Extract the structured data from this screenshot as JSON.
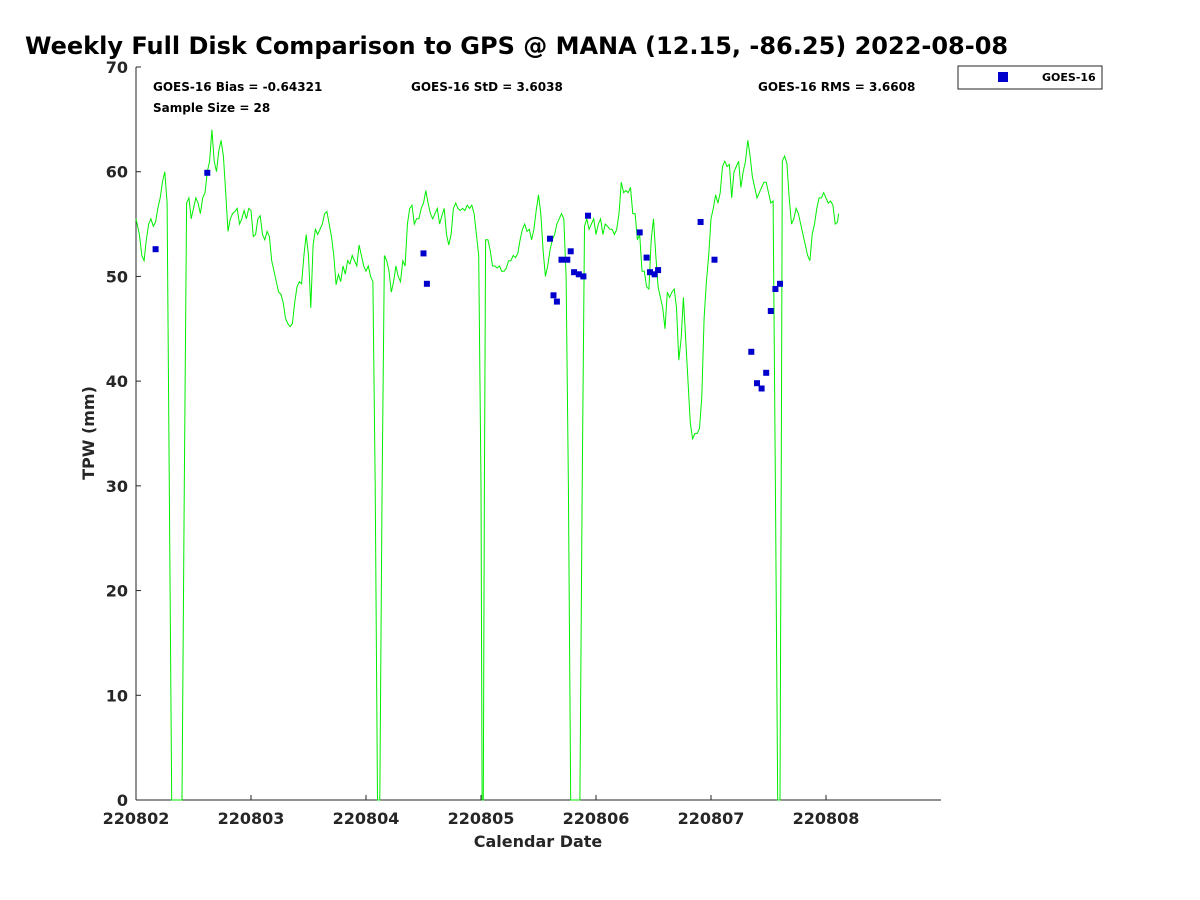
{
  "chart_data": {
    "type": "line",
    "title": "Weekly Full Disk Comparison to GPS @ MANA (12.15, -86.25) 2022-08-08",
    "xlabel": "Calendar Date",
    "ylabel": "TPW (mm)",
    "xlim": [
      0,
      7
    ],
    "ylim": [
      0,
      70
    ],
    "x_ticks": [
      0,
      1,
      2,
      3,
      4,
      5,
      6
    ],
    "x_tick_labels": [
      "220802",
      "220803",
      "220804",
      "220805",
      "220806",
      "220807",
      "220808"
    ],
    "y_ticks": [
      0,
      10,
      20,
      30,
      40,
      50,
      60,
      70
    ],
    "y_tick_labels": [
      "0",
      "10",
      "20",
      "30",
      "40",
      "50",
      "60",
      "70"
    ],
    "grid": false,
    "legend_position": "outside-top-right",
    "stats": {
      "bias": "GOES-16 Bias = -0.64321",
      "std": "GOES-16 StD = 3.6038",
      "rms": "GOES-16 RMS = 3.6608",
      "sample_size": "Sample Size = 28"
    },
    "line_color": "#00ee00",
    "marker_color": "#0000cc",
    "gps_line": [
      [
        0.0,
        55.5
      ],
      [
        0.03,
        54.0
      ],
      [
        0.05,
        52.0
      ],
      [
        0.07,
        51.5
      ],
      [
        0.09,
        53.5
      ],
      [
        0.11,
        55.0
      ],
      [
        0.13,
        55.5
      ],
      [
        0.15,
        54.8
      ],
      [
        0.17,
        55.2
      ],
      [
        0.19,
        56.5
      ],
      [
        0.21,
        57.5
      ],
      [
        0.23,
        59.0
      ],
      [
        0.25,
        60.0
      ],
      [
        0.27,
        57.0
      ],
      [
        0.29,
        30.0
      ],
      [
        0.31,
        0.0
      ],
      [
        0.4,
        0.0
      ],
      [
        0.42,
        30.0
      ],
      [
        0.44,
        57.0
      ],
      [
        0.46,
        57.5
      ],
      [
        0.48,
        55.5
      ],
      [
        0.5,
        56.5
      ],
      [
        0.52,
        57.5
      ],
      [
        0.54,
        57.0
      ],
      [
        0.56,
        56.0
      ],
      [
        0.58,
        57.5
      ],
      [
        0.6,
        58.0
      ],
      [
        0.62,
        60.0
      ],
      [
        0.64,
        61.0
      ],
      [
        0.66,
        64.0
      ],
      [
        0.68,
        61.0
      ],
      [
        0.7,
        60.0
      ],
      [
        0.72,
        62.0
      ],
      [
        0.74,
        63.0
      ],
      [
        0.76,
        61.5
      ],
      [
        0.78,
        58.0
      ],
      [
        0.8,
        54.3
      ],
      [
        0.82,
        55.5
      ],
      [
        0.84,
        56.0
      ],
      [
        0.86,
        56.2
      ],
      [
        0.88,
        56.5
      ],
      [
        0.9,
        55.0
      ],
      [
        0.92,
        55.5
      ],
      [
        0.94,
        56.3
      ],
      [
        0.96,
        55.5
      ],
      [
        0.98,
        56.5
      ],
      [
        1.0,
        56.3
      ],
      [
        1.02,
        53.8
      ],
      [
        1.04,
        54.0
      ],
      [
        1.06,
        55.5
      ],
      [
        1.08,
        55.8
      ],
      [
        1.1,
        54.0
      ],
      [
        1.12,
        53.5
      ],
      [
        1.14,
        54.3
      ],
      [
        1.16,
        53.8
      ],
      [
        1.18,
        51.5
      ],
      [
        1.2,
        50.5
      ],
      [
        1.22,
        49.5
      ],
      [
        1.24,
        48.5
      ],
      [
        1.26,
        48.3
      ],
      [
        1.28,
        47.5
      ],
      [
        1.3,
        46.0
      ],
      [
        1.32,
        45.5
      ],
      [
        1.34,
        45.2
      ],
      [
        1.36,
        45.5
      ],
      [
        1.38,
        47.5
      ],
      [
        1.4,
        49.0
      ],
      [
        1.42,
        49.5
      ],
      [
        1.44,
        49.3
      ],
      [
        1.46,
        52.0
      ],
      [
        1.48,
        54.0
      ],
      [
        1.5,
        52.0
      ],
      [
        1.52,
        47.0
      ],
      [
        1.54,
        53.0
      ],
      [
        1.56,
        54.5
      ],
      [
        1.58,
        54.0
      ],
      [
        1.6,
        54.5
      ],
      [
        1.62,
        55.0
      ],
      [
        1.64,
        56.0
      ],
      [
        1.66,
        56.2
      ],
      [
        1.68,
        55.0
      ],
      [
        1.7,
        53.8
      ],
      [
        1.72,
        52.0
      ],
      [
        1.74,
        49.2
      ],
      [
        1.76,
        50.2
      ],
      [
        1.78,
        49.5
      ],
      [
        1.8,
        51.0
      ],
      [
        1.82,
        50.2
      ],
      [
        1.84,
        51.5
      ],
      [
        1.86,
        51.2
      ],
      [
        1.88,
        52.0
      ],
      [
        1.9,
        51.5
      ],
      [
        1.92,
        51.0
      ],
      [
        1.94,
        53.0
      ],
      [
        1.96,
        52.0
      ],
      [
        1.98,
        51.0
      ],
      [
        2.0,
        50.5
      ],
      [
        2.02,
        51.0
      ],
      [
        2.04,
        50.0
      ],
      [
        2.06,
        49.5
      ],
      [
        2.08,
        30.0
      ],
      [
        2.1,
        0.0
      ],
      [
        2.12,
        0.0
      ],
      [
        2.14,
        30.0
      ],
      [
        2.16,
        52.0
      ],
      [
        2.18,
        51.5
      ],
      [
        2.2,
        50.5
      ],
      [
        2.22,
        48.5
      ],
      [
        2.24,
        49.5
      ],
      [
        2.26,
        51.0
      ],
      [
        2.28,
        50.0
      ],
      [
        2.3,
        49.5
      ],
      [
        2.32,
        51.5
      ],
      [
        2.34,
        51.0
      ],
      [
        2.36,
        55.0
      ],
      [
        2.38,
        56.5
      ],
      [
        2.4,
        56.8
      ],
      [
        2.42,
        55.0
      ],
      [
        2.44,
        55.5
      ],
      [
        2.46,
        55.5
      ],
      [
        2.48,
        56.5
      ],
      [
        2.5,
        57.0
      ],
      [
        2.52,
        58.2
      ],
      [
        2.54,
        57.0
      ],
      [
        2.56,
        56.0
      ],
      [
        2.58,
        55.5
      ],
      [
        2.6,
        56.0
      ],
      [
        2.62,
        56.5
      ],
      [
        2.64,
        55.0
      ],
      [
        2.66,
        55.8
      ],
      [
        2.68,
        56.5
      ],
      [
        2.7,
        54.0
      ],
      [
        2.72,
        53.0
      ],
      [
        2.74,
        54.0
      ],
      [
        2.76,
        56.5
      ],
      [
        2.78,
        57.0
      ],
      [
        2.8,
        56.5
      ],
      [
        2.82,
        56.3
      ],
      [
        2.84,
        56.5
      ],
      [
        2.86,
        56.3
      ],
      [
        2.88,
        56.8
      ],
      [
        2.9,
        56.5
      ],
      [
        2.92,
        56.8
      ],
      [
        2.94,
        56.0
      ],
      [
        2.96,
        54.0
      ],
      [
        2.98,
        52.0
      ],
      [
        3.0,
        30.0
      ],
      [
        3.01,
        0.0
      ],
      [
        3.02,
        0.0
      ],
      [
        3.03,
        30.0
      ],
      [
        3.04,
        53.5
      ],
      [
        3.06,
        53.5
      ],
      [
        3.08,
        52.5
      ],
      [
        3.1,
        51.0
      ],
      [
        3.12,
        51.0
      ],
      [
        3.14,
        50.8
      ],
      [
        3.16,
        51.0
      ],
      [
        3.18,
        50.5
      ],
      [
        3.2,
        50.5
      ],
      [
        3.22,
        50.8
      ],
      [
        3.24,
        51.5
      ],
      [
        3.26,
        51.5
      ],
      [
        3.28,
        52.0
      ],
      [
        3.3,
        51.8
      ],
      [
        3.32,
        52.2
      ],
      [
        3.34,
        53.5
      ],
      [
        3.36,
        54.5
      ],
      [
        3.38,
        55.0
      ],
      [
        3.4,
        54.3
      ],
      [
        3.42,
        54.5
      ],
      [
        3.44,
        53.5
      ],
      [
        3.46,
        54.5
      ],
      [
        3.48,
        56.3
      ],
      [
        3.5,
        57.8
      ],
      [
        3.52,
        56.0
      ],
      [
        3.54,
        52.5
      ],
      [
        3.56,
        50.0
      ],
      [
        3.58,
        51.0
      ],
      [
        3.6,
        52.5
      ],
      [
        3.62,
        53.5
      ],
      [
        3.64,
        54.0
      ],
      [
        3.66,
        55.0
      ],
      [
        3.68,
        55.5
      ],
      [
        3.7,
        56.0
      ],
      [
        3.72,
        55.5
      ],
      [
        3.74,
        50.0
      ],
      [
        3.76,
        30.0
      ],
      [
        3.78,
        0.0
      ],
      [
        3.86,
        0.0
      ],
      [
        3.88,
        30.0
      ],
      [
        3.9,
        54.8
      ],
      [
        3.92,
        55.5
      ],
      [
        3.94,
        54.5
      ],
      [
        3.96,
        55.0
      ],
      [
        3.98,
        55.5
      ],
      [
        4.0,
        54.0
      ],
      [
        4.02,
        55.0
      ],
      [
        4.04,
        55.5
      ],
      [
        4.06,
        54.0
      ],
      [
        4.08,
        55.0
      ],
      [
        4.1,
        54.8
      ],
      [
        4.12,
        54.5
      ],
      [
        4.14,
        54.5
      ],
      [
        4.16,
        54.0
      ],
      [
        4.18,
        54.5
      ],
      [
        4.2,
        56.0
      ],
      [
        4.22,
        59.0
      ],
      [
        4.24,
        58.0
      ],
      [
        4.26,
        58.2
      ],
      [
        4.28,
        58.0
      ],
      [
        4.3,
        58.5
      ],
      [
        4.32,
        56.0
      ],
      [
        4.34,
        56.0
      ],
      [
        4.36,
        53.5
      ],
      [
        4.38,
        54.0
      ],
      [
        4.4,
        50.5
      ],
      [
        4.42,
        50.5
      ],
      [
        4.44,
        49.0
      ],
      [
        4.46,
        48.8
      ],
      [
        4.48,
        53.5
      ],
      [
        4.5,
        55.5
      ],
      [
        4.52,
        52.0
      ],
      [
        4.54,
        49.0
      ],
      [
        4.56,
        48.0
      ],
      [
        4.58,
        47.0
      ],
      [
        4.6,
        45.0
      ],
      [
        4.62,
        48.5
      ],
      [
        4.64,
        48.0
      ],
      [
        4.66,
        48.5
      ],
      [
        4.68,
        48.8
      ],
      [
        4.7,
        47.0
      ],
      [
        4.72,
        42.0
      ],
      [
        4.74,
        44.0
      ],
      [
        4.76,
        48.0
      ],
      [
        4.78,
        44.0
      ],
      [
        4.8,
        40.0
      ],
      [
        4.82,
        36.0
      ],
      [
        4.84,
        34.5
      ],
      [
        4.86,
        35.0
      ],
      [
        4.88,
        35.0
      ],
      [
        4.9,
        35.5
      ],
      [
        4.92,
        38.5
      ],
      [
        4.94,
        46.0
      ],
      [
        4.96,
        49.5
      ],
      [
        4.98,
        52.0
      ],
      [
        5.0,
        55.5
      ],
      [
        5.02,
        56.5
      ],
      [
        5.04,
        57.8
      ],
      [
        5.06,
        57.0
      ],
      [
        5.08,
        58.0
      ],
      [
        5.1,
        60.5
      ],
      [
        5.12,
        61.0
      ],
      [
        5.14,
        60.5
      ],
      [
        5.16,
        60.7
      ],
      [
        5.18,
        57.5
      ],
      [
        5.2,
        60.0
      ],
      [
        5.22,
        60.5
      ],
      [
        5.24,
        61.0
      ],
      [
        5.26,
        58.5
      ],
      [
        5.28,
        60.0
      ],
      [
        5.3,
        61.0
      ],
      [
        5.32,
        63.0
      ],
      [
        5.34,
        61.5
      ],
      [
        5.36,
        59.5
      ],
      [
        5.38,
        58.5
      ],
      [
        5.4,
        57.5
      ],
      [
        5.42,
        58.0
      ],
      [
        5.44,
        58.5
      ],
      [
        5.46,
        59.0
      ],
      [
        5.48,
        59.0
      ],
      [
        5.5,
        58.0
      ],
      [
        5.52,
        57.0
      ],
      [
        5.54,
        57.2
      ],
      [
        5.56,
        30.0
      ],
      [
        5.58,
        0.0
      ],
      [
        5.6,
        0.0
      ],
      [
        5.61,
        30.0
      ],
      [
        5.62,
        61.0
      ],
      [
        5.64,
        61.5
      ],
      [
        5.66,
        60.8
      ],
      [
        5.68,
        57.5
      ],
      [
        5.7,
        55.0
      ],
      [
        5.72,
        55.5
      ],
      [
        5.74,
        56.5
      ],
      [
        5.76,
        56.0
      ],
      [
        5.78,
        55.0
      ],
      [
        5.8,
        54.0
      ],
      [
        5.82,
        53.0
      ],
      [
        5.84,
        52.0
      ],
      [
        5.86,
        51.5
      ],
      [
        5.88,
        54.0
      ],
      [
        5.9,
        55.0
      ],
      [
        5.92,
        56.5
      ],
      [
        5.94,
        57.5
      ],
      [
        5.96,
        57.5
      ],
      [
        5.98,
        58.0
      ],
      [
        6.0,
        57.5
      ],
      [
        6.02,
        57.0
      ],
      [
        6.04,
        57.2
      ],
      [
        6.06,
        56.8
      ],
      [
        6.08,
        55.0
      ],
      [
        6.1,
        55.2
      ],
      [
        6.11,
        56.0
      ]
    ],
    "series": [
      {
        "name": "GOES-16",
        "points": [
          [
            0.17,
            52.6
          ],
          [
            0.62,
            59.9
          ],
          [
            2.5,
            52.2
          ],
          [
            2.53,
            49.3
          ],
          [
            3.6,
            53.6
          ],
          [
            3.63,
            48.2
          ],
          [
            3.66,
            47.6
          ],
          [
            3.7,
            51.6
          ],
          [
            3.75,
            51.6
          ],
          [
            3.78,
            52.4
          ],
          [
            3.81,
            50.4
          ],
          [
            3.85,
            50.2
          ],
          [
            3.89,
            50.0
          ],
          [
            3.93,
            55.8
          ],
          [
            4.38,
            54.2
          ],
          [
            4.44,
            51.8
          ],
          [
            4.47,
            50.4
          ],
          [
            4.51,
            50.2
          ],
          [
            4.54,
            50.6
          ],
          [
            4.91,
            55.2
          ],
          [
            5.03,
            51.6
          ],
          [
            5.35,
            42.8
          ],
          [
            5.4,
            39.8
          ],
          [
            5.44,
            39.3
          ],
          [
            5.48,
            40.8
          ],
          [
            5.52,
            46.7
          ],
          [
            5.56,
            48.8
          ],
          [
            5.6,
            49.3
          ]
        ]
      }
    ]
  }
}
